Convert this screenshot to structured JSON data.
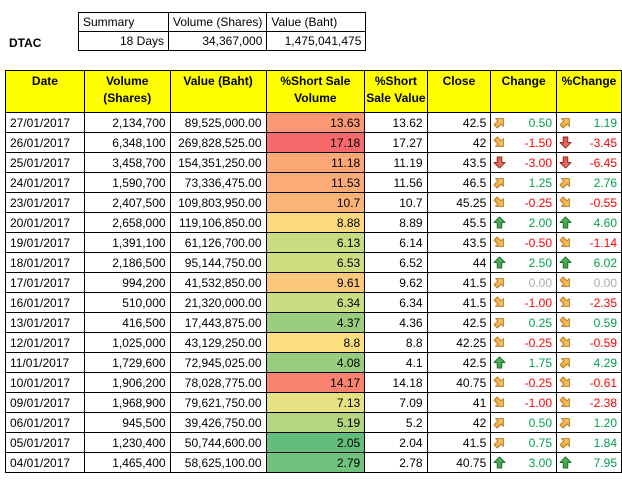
{
  "stock": {
    "symbol": "DTAC"
  },
  "summary": {
    "headers": [
      "Summary",
      "Volume (Shares)",
      "Value (Baht)"
    ],
    "days": "18 Days",
    "volume": "34,367,000",
    "value": "1,475,041,475"
  },
  "colors": {
    "header_bg": "#FFFF00",
    "positive_text": "#00A14B",
    "negative_text": "#FF0000",
    "zero_text": "#ABABAB",
    "scale_min_green": "#63BE7B",
    "scale_mid_yellow": "#FFEB84",
    "scale_max_red": "#F8696B"
  },
  "table": {
    "headers": [
      {
        "l1": "Date",
        "l2": ""
      },
      {
        "l1": "Volume",
        "l2": "(Shares)"
      },
      {
        "l1": "Value (Baht)",
        "l2": ""
      },
      {
        "l1": "%Short Sale",
        "l2": "Volume"
      },
      {
        "l1": "%Short",
        "l2": "Sale Value"
      },
      {
        "l1": "Close",
        "l2": ""
      },
      {
        "l1": "Change",
        "l2": ""
      },
      {
        "l1": "%Change",
        "l2": ""
      }
    ],
    "rows": [
      {
        "date": "27/01/2017",
        "volume": "2,134,700",
        "value": "89,525,000.00",
        "pct_volume": "13.63",
        "pct_volume_bg": "#FA9873",
        "pct_value": "13.62",
        "close": "42.5",
        "change": "0.50",
        "change_icon": "ne",
        "pchange": "1.19",
        "pchange_icon": "ne"
      },
      {
        "date": "26/01/2017",
        "volume": "6,348,100",
        "value": "269,828,525.00",
        "pct_volume": "17.18",
        "pct_volume_bg": "#F8696B",
        "pct_value": "17.27",
        "close": "42",
        "change": "-1.50",
        "change_icon": "se",
        "pchange": "-3.45",
        "pchange_icon": "down"
      },
      {
        "date": "25/01/2017",
        "volume": "3,458,700",
        "value": "154,351,250.00",
        "pct_volume": "11.18",
        "pct_volume_bg": "#FBA776",
        "pct_value": "11.19",
        "close": "43.5",
        "change": "-3.00",
        "change_icon": "down",
        "pchange": "-6.45",
        "pchange_icon": "down"
      },
      {
        "date": "24/01/2017",
        "volume": "1,590,700",
        "value": "73,336,475.00",
        "pct_volume": "11.53",
        "pct_volume_bg": "#FBAB77",
        "pct_value": "11.56",
        "close": "46.5",
        "change": "1.25",
        "change_icon": "ne",
        "pchange": "2.76",
        "pchange_icon": "ne"
      },
      {
        "date": "23/01/2017",
        "volume": "2,407,500",
        "value": "109,803,950.00",
        "pct_volume": "10.7",
        "pct_volume_bg": "#FBB378",
        "pct_value": "10.7",
        "close": "45.25",
        "change": "-0.25",
        "change_icon": "se",
        "pchange": "-0.55",
        "pchange_icon": "se"
      },
      {
        "date": "20/01/2017",
        "volume": "2,658,000",
        "value": "119,106,850.00",
        "pct_volume": "8.88",
        "pct_volume_bg": "#FCD97D",
        "pct_value": "8.89",
        "close": "45.5",
        "change": "2.00",
        "change_icon": "up",
        "pchange": "4.60",
        "pchange_icon": "up"
      },
      {
        "date": "19/01/2017",
        "volume": "1,391,100",
        "value": "61,126,700.00",
        "pct_volume": "6.13",
        "pct_volume_bg": "#C8DC81",
        "pct_value": "6.14",
        "close": "43.5",
        "change": "-0.50",
        "change_icon": "se",
        "pchange": "-1.14",
        "pchange_icon": "se"
      },
      {
        "date": "18/01/2017",
        "volume": "2,186,500",
        "value": "95,144,750.00",
        "pct_volume": "6.53",
        "pct_volume_bg": "#CDDE81",
        "pct_value": "6.52",
        "close": "44",
        "change": "2.50",
        "change_icon": "up",
        "pchange": "6.02",
        "pchange_icon": "up"
      },
      {
        "date": "17/01/2017",
        "volume": "994,200",
        "value": "41,532,850.00",
        "pct_volume": "9.61",
        "pct_volume_bg": "#FCC87B",
        "pct_value": "9.62",
        "close": "41.5",
        "change": "0.00",
        "change_icon": "ne",
        "pchange": "0.00",
        "pchange_icon": "se"
      },
      {
        "date": "16/01/2017",
        "volume": "510,000",
        "value": "21,320,000.00",
        "pct_volume": "6.34",
        "pct_volume_bg": "#CBDD81",
        "pct_value": "6.34",
        "close": "41.5",
        "change": "-1.00",
        "change_icon": "se",
        "pchange": "-2.35",
        "pchange_icon": "se"
      },
      {
        "date": "13/01/2017",
        "volume": "416,500",
        "value": "17,443,875.00",
        "pct_volume": "4.37",
        "pct_volume_bg": "#9ACE7E",
        "pct_value": "4.36",
        "close": "42.5",
        "change": "0.25",
        "change_icon": "ne",
        "pchange": "0.59",
        "pchange_icon": "se"
      },
      {
        "date": "12/01/2017",
        "volume": "1,025,000",
        "value": "43,129,250.00",
        "pct_volume": "8.8",
        "pct_volume_bg": "#FDDF7F",
        "pct_value": "8.8",
        "close": "42.25",
        "change": "-0.25",
        "change_icon": "se",
        "pchange": "-0.59",
        "pchange_icon": "se"
      },
      {
        "date": "11/01/2017",
        "volume": "1,729,600",
        "value": "72,945,025.00",
        "pct_volume": "4.08",
        "pct_volume_bg": "#97CD7E",
        "pct_value": "4.1",
        "close": "42.5",
        "change": "1.75",
        "change_icon": "up",
        "pchange": "4.29",
        "pchange_icon": "ne"
      },
      {
        "date": "10/01/2017",
        "volume": "1,906,200",
        "value": "78,028,775.00",
        "pct_volume": "14.17",
        "pct_volume_bg": "#F9836F",
        "pct_value": "14.18",
        "close": "40.75",
        "change": "-0.25",
        "change_icon": "se",
        "pchange": "-0.61",
        "pchange_icon": "se"
      },
      {
        "date": "09/01/2017",
        "volume": "1,968,900",
        "value": "79,621,750.00",
        "pct_volume": "7.13",
        "pct_volume_bg": "#E6E283",
        "pct_value": "7.09",
        "close": "41",
        "change": "-1.00",
        "change_icon": "se",
        "pchange": "-2.38",
        "pchange_icon": "se"
      },
      {
        "date": "06/01/2017",
        "volume": "945,500",
        "value": "39,426,750.00",
        "pct_volume": "5.19",
        "pct_volume_bg": "#B5D680",
        "pct_value": "5.2",
        "close": "42",
        "change": "0.50",
        "change_icon": "ne",
        "pchange": "1.20",
        "pchange_icon": "ne"
      },
      {
        "date": "05/01/2017",
        "volume": "1,230,400",
        "value": "50,744,600.00",
        "pct_volume": "2.05",
        "pct_volume_bg": "#63BE7B",
        "pct_value": "2.04",
        "close": "41.5",
        "change": "0.75",
        "change_icon": "ne",
        "pchange": "1.84",
        "pchange_icon": "ne"
      },
      {
        "date": "04/01/2017",
        "volume": "1,465,400",
        "value": "58,625,100.00",
        "pct_volume": "2.79",
        "pct_volume_bg": "#70C27C",
        "pct_value": "2.78",
        "close": "40.75",
        "change": "3.00",
        "change_icon": "up",
        "pchange": "7.95",
        "pchange_icon": "up"
      }
    ]
  }
}
